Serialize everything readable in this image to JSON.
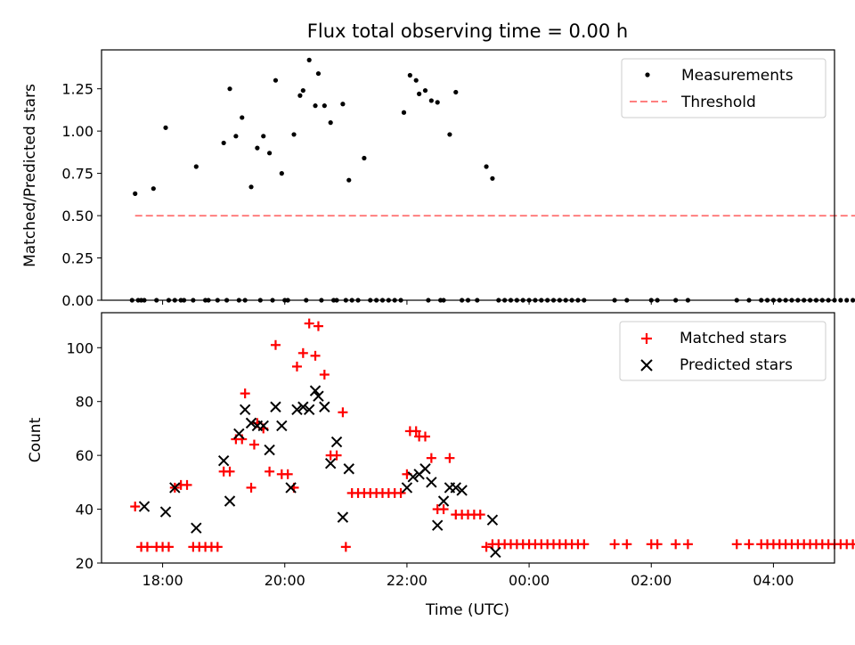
{
  "chart_data": [
    {
      "type": "scatter",
      "title": "Flux total observing time = 0.00 h",
      "xlabel": "",
      "ylabel": "Matched/Predicted stars",
      "xlim_hours": [
        17.0,
        29.0
      ],
      "ylim": [
        0.0,
        1.48
      ],
      "yticks": [
        "0.00",
        "0.25",
        "0.50",
        "0.75",
        "1.00",
        "1.25"
      ],
      "ytick_values": [
        0.0,
        0.25,
        0.5,
        0.75,
        1.0,
        1.25
      ],
      "threshold": {
        "value": 0.5,
        "x_start_hours": 17.55,
        "x_end_hours": 29.4,
        "color": "#ff7f7f"
      },
      "legend": {
        "position": "top-right",
        "entries": [
          "Measurements",
          "Threshold"
        ]
      },
      "series": [
        {
          "name": "Measurements",
          "marker": "dot",
          "color": "#000000",
          "x_hours": [
            17.55,
            17.65,
            17.7,
            17.85,
            18.05,
            18.2,
            18.35,
            18.55,
            18.75,
            19.0,
            19.1,
            19.2,
            19.3,
            19.45,
            19.55,
            19.65,
            19.75,
            19.85,
            19.95,
            20.05,
            20.15,
            20.25,
            20.3,
            20.4,
            20.5,
            20.55,
            20.65,
            20.75,
            20.85,
            20.95,
            21.05,
            21.3,
            21.6,
            21.95,
            22.05,
            22.15,
            22.2,
            22.3,
            22.4,
            22.5,
            22.6,
            22.7,
            22.8,
            23.3,
            23.4,
            17.5,
            17.6,
            17.9,
            18.1,
            18.3,
            18.5,
            18.7,
            18.9,
            19.05,
            19.25,
            19.35,
            19.6,
            19.8,
            20.0,
            20.35,
            20.6,
            20.8,
            21.0,
            21.1,
            21.2,
            21.4,
            21.5,
            21.7,
            21.8,
            21.9,
            22.35,
            22.55,
            22.9,
            23.0,
            23.15,
            23.5,
            23.6,
            23.7,
            23.8,
            23.9,
            24.0,
            24.1,
            24.2,
            24.3,
            24.4,
            24.5,
            24.6,
            24.7,
            24.8,
            24.9,
            25.4,
            25.6,
            26.0,
            26.1,
            26.4,
            26.6,
            27.4,
            27.6,
            27.8,
            27.9,
            28.0,
            28.1,
            28.2,
            28.3,
            28.4,
            28.5,
            28.6,
            28.7,
            28.8,
            28.9,
            29.0,
            29.1,
            29.2,
            29.3
          ],
          "y": [
            0.63,
            0.0,
            0.0,
            0.66,
            1.02,
            0.0,
            0.0,
            0.79,
            0.0,
            0.93,
            1.25,
            0.97,
            1.08,
            0.67,
            0.9,
            0.97,
            0.87,
            1.3,
            0.75,
            0.0,
            0.98,
            1.21,
            1.24,
            1.42,
            1.15,
            1.34,
            1.15,
            1.05,
            0.0,
            1.16,
            0.71,
            0.84,
            0.0,
            1.11,
            1.33,
            1.3,
            1.22,
            1.24,
            1.18,
            1.17,
            0.0,
            0.98,
            1.23,
            0.79,
            0.72,
            0.0,
            0.0,
            0.0,
            0.0,
            0.0,
            0.0,
            0.0,
            0.0,
            0.0,
            0.0,
            0.0,
            0.0,
            0.0,
            0.0,
            0.0,
            0.0,
            0.0,
            0.0,
            0.0,
            0.0,
            0.0,
            0.0,
            0.0,
            0.0,
            0.0,
            0.0,
            0.0,
            0.0,
            0.0,
            0.0,
            0.0,
            0.0,
            0.0,
            0.0,
            0.0,
            0.0,
            0.0,
            0.0,
            0.0,
            0.0,
            0.0,
            0.0,
            0.0,
            0.0,
            0.0,
            0.0,
            0.0,
            0.0,
            0.0,
            0.0,
            0.0,
            0.0,
            0.0,
            0.0,
            0.0,
            0.0,
            0.0,
            0.0,
            0.0,
            0.0,
            0.0,
            0.0,
            0.0,
            0.0,
            0.0,
            0.0,
            0.0,
            0.0,
            0.0
          ]
        }
      ]
    },
    {
      "type": "scatter",
      "title": "",
      "xlabel": "Time (UTC)",
      "ylabel": "Count",
      "xlim_hours": [
        17.0,
        29.0
      ],
      "ylim": [
        20,
        113
      ],
      "yticks": [
        "20",
        "40",
        "60",
        "80",
        "100"
      ],
      "ytick_values": [
        20,
        40,
        60,
        80,
        100
      ],
      "xticks": [
        "18:00",
        "20:00",
        "22:00",
        "00:00",
        "02:00",
        "04:00"
      ],
      "xtick_values_hours": [
        18,
        20,
        22,
        24,
        26,
        28
      ],
      "legend": {
        "position": "top-right",
        "entries": [
          "Matched stars",
          "Predicted stars"
        ]
      },
      "series": [
        {
          "name": "Matched stars",
          "marker": "plus",
          "color": "#ff0000",
          "x_hours": [
            17.55,
            17.65,
            17.75,
            17.9,
            18.0,
            18.1,
            18.2,
            18.3,
            18.4,
            18.5,
            18.6,
            18.7,
            18.8,
            18.9,
            19.0,
            19.1,
            19.2,
            19.3,
            19.35,
            19.45,
            19.5,
            19.55,
            19.65,
            19.75,
            19.85,
            19.95,
            20.05,
            20.15,
            20.2,
            20.3,
            20.4,
            20.5,
            20.55,
            20.65,
            20.75,
            20.85,
            20.95,
            21.0,
            21.1,
            21.2,
            21.3,
            21.4,
            21.5,
            21.6,
            21.7,
            21.8,
            21.9,
            22.0,
            22.05,
            22.15,
            22.2,
            22.3,
            22.4,
            22.5,
            22.6,
            22.7,
            22.8,
            22.9,
            23.0,
            23.1,
            23.2,
            23.3,
            23.4,
            23.5,
            23.6,
            23.7,
            23.8,
            23.9,
            24.0,
            24.1,
            24.2,
            24.3,
            24.4,
            24.5,
            24.6,
            24.7,
            24.8,
            24.9,
            25.4,
            25.6,
            26.0,
            26.1,
            26.4,
            26.6,
            27.4,
            27.6,
            27.8,
            27.9,
            28.0,
            28.1,
            28.2,
            28.3,
            28.4,
            28.5,
            28.6,
            28.7,
            28.8,
            28.9,
            29.0,
            29.1,
            29.2,
            29.3
          ],
          "y": [
            41,
            26,
            26,
            26,
            26,
            26,
            48,
            49,
            49,
            26,
            26,
            26,
            26,
            26,
            54,
            54,
            66,
            66,
            83,
            48,
            64,
            72,
            70,
            54,
            101,
            53,
            53,
            48,
            93,
            98,
            109,
            97,
            108,
            90,
            60,
            60,
            76,
            26,
            46,
            46,
            46,
            46,
            46,
            46,
            46,
            46,
            46,
            53,
            69,
            69,
            67,
            67,
            59,
            40,
            40,
            59,
            38,
            38,
            38,
            38,
            38,
            26,
            27,
            27,
            27,
            27,
            27,
            27,
            27,
            27,
            27,
            27,
            27,
            27,
            27,
            27,
            27,
            27,
            27,
            27,
            27,
            27,
            27,
            27,
            27,
            27,
            27,
            27,
            27,
            27,
            27,
            27,
            27,
            27,
            27,
            27,
            27,
            27,
            27,
            27,
            27,
            27
          ]
        },
        {
          "name": "Predicted stars",
          "marker": "x",
          "color": "#000000",
          "x_hours": [
            17.7,
            18.05,
            18.2,
            18.55,
            19.0,
            19.1,
            19.25,
            19.35,
            19.45,
            19.55,
            19.65,
            19.75,
            19.85,
            19.95,
            20.1,
            20.2,
            20.3,
            20.4,
            20.5,
            20.55,
            20.65,
            20.75,
            20.85,
            20.95,
            21.05,
            22.0,
            22.1,
            22.2,
            22.3,
            22.4,
            22.5,
            22.6,
            22.7,
            22.8,
            22.9,
            23.4,
            23.45
          ],
          "y": [
            41,
            39,
            48,
            33,
            58,
            43,
            68,
            77,
            72,
            71,
            71,
            62,
            78,
            71,
            48,
            77,
            78,
            77,
            84,
            82,
            78,
            57,
            65,
            37,
            55,
            48,
            52,
            53,
            55,
            50,
            34,
            43,
            48,
            48,
            47,
            36,
            24
          ]
        }
      ]
    }
  ]
}
